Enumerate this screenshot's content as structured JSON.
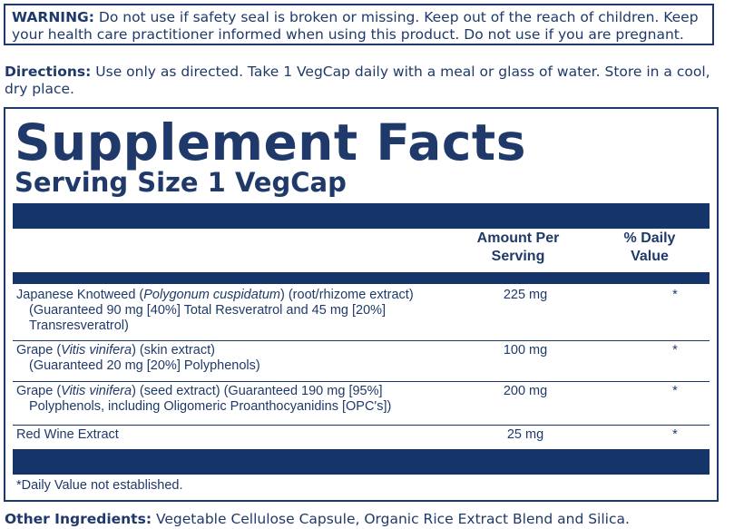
{
  "warning": {
    "label": "WARNING:",
    "text": " Do not use if safety seal is broken or missing. Keep out of the reach of children. Keep your health care practitioner informed when using this product. Do not use if you are pregnant."
  },
  "directions": {
    "label": "Directions:",
    "text": " Use only as directed. Take 1 VegCap daily with a meal or glass of water. Store in a cool, dry place."
  },
  "facts": {
    "title": "Supplement Facts",
    "serving_size": "Serving Size 1 VegCap",
    "col_amount_line1": "Amount Per",
    "col_amount_line2": "Serving",
    "col_dv_line1": "% Daily",
    "col_dv_line2": "Value",
    "rows": [
      {
        "name_pre": "Japanese Knotweed (",
        "name_italic": "Polygonum cuspidatum",
        "name_post": ") (root/rhizome extract)",
        "sub": "(Guaranteed 90 mg [40%] Total Resveratrol and 45 mg [20%] Transresveratrol)",
        "amount": "225 mg",
        "dv": "*"
      },
      {
        "name_pre": "Grape (",
        "name_italic": "Vitis vinifera",
        "name_post": ") (skin extract)",
        "sub": "(Guaranteed 20 mg [20%] Polyphenols)",
        "amount": "100 mg",
        "dv": "*"
      },
      {
        "name_pre": "Grape (",
        "name_italic": "Vitis vinifera",
        "name_post": ") (seed extract) (Guaranteed 190 mg [95%]",
        "sub": "Polyphenols, including Oligomeric Proanthocyanidins [OPC's])",
        "amount": "200 mg",
        "dv": "*"
      },
      {
        "name_pre": "Red Wine Extract",
        "name_italic": "",
        "name_post": "",
        "sub": "",
        "amount": "25 mg",
        "dv": "*"
      }
    ],
    "footnote": "*Daily Value not established."
  },
  "other_ingredients": {
    "label": "Other Ingredients:",
    "text": " Vegetable Cellulose Capsule, Organic Rice Extract Blend and Silica."
  }
}
